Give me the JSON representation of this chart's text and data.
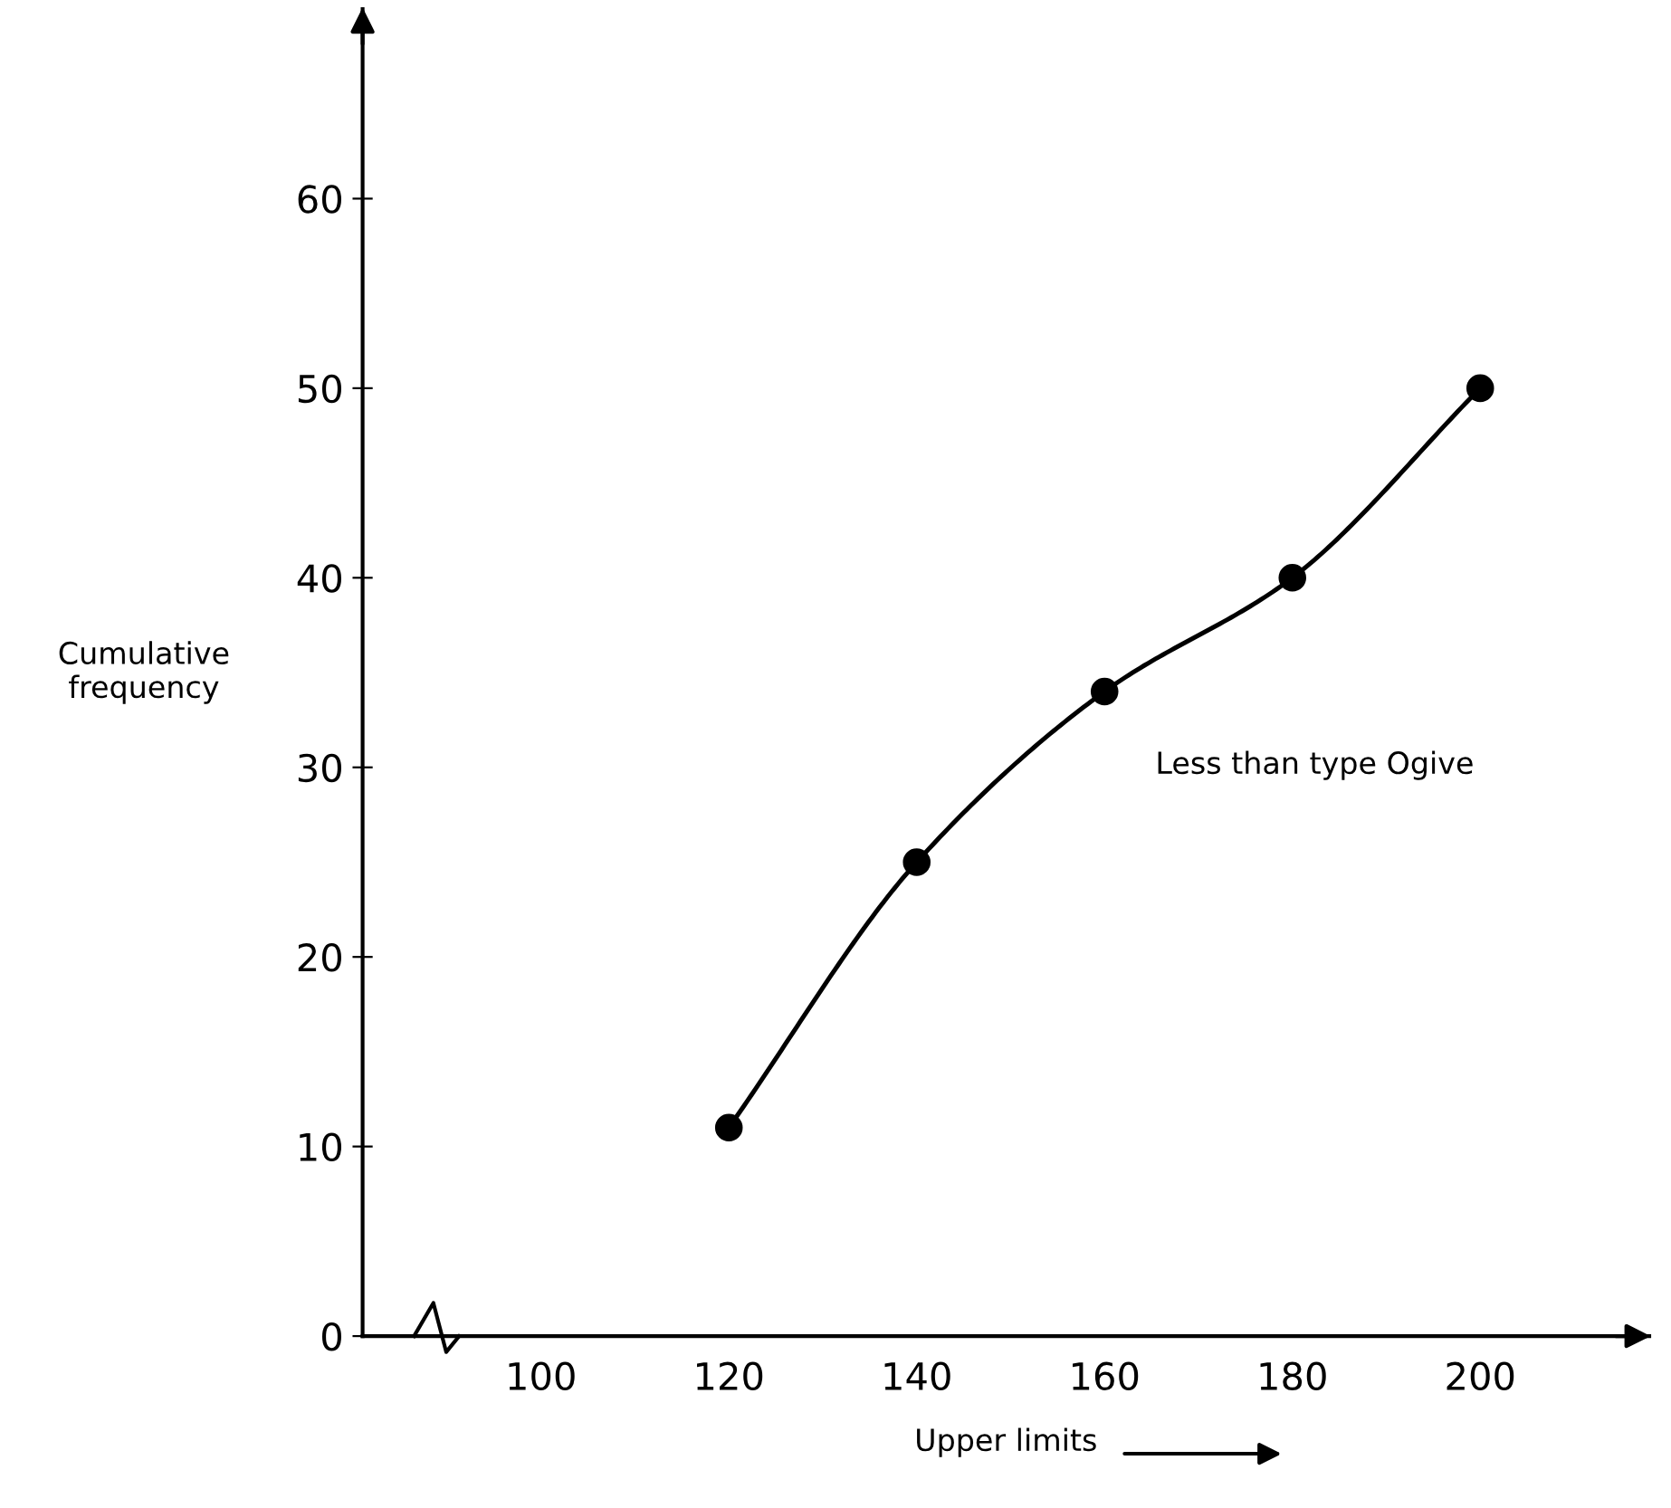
{
  "chart_data": {
    "type": "line",
    "xlabel": "Upper limits",
    "ylabel": "Cumulative\nfrequency",
    "x": [
      120,
      140,
      160,
      180,
      200
    ],
    "series": [
      {
        "color": "#000000",
        "values": [
          11,
          25,
          34,
          40,
          50
        ]
      }
    ],
    "xlim": [
      81,
      218
    ],
    "ylim": [
      0,
      70
    ],
    "xticks": [
      100,
      120,
      140,
      160,
      180,
      200
    ],
    "yticks": [
      0,
      10,
      20,
      30,
      40,
      50,
      60
    ],
    "annotations": [
      "Less than type Ogive"
    ],
    "marker": "circle",
    "line_style": "solid",
    "grid": false
  }
}
